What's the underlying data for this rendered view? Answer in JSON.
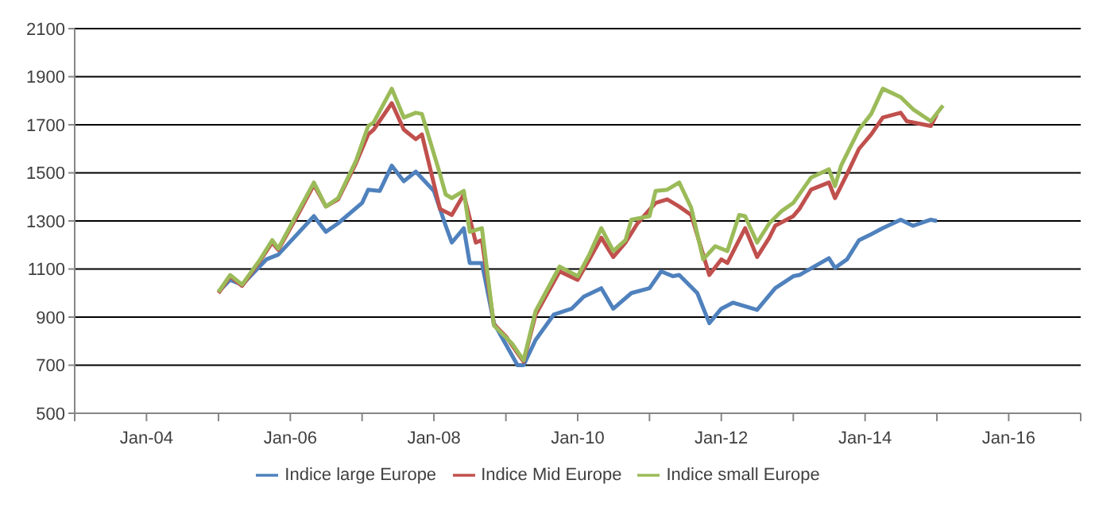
{
  "chart_data": {
    "type": "line",
    "xlim": [
      "2003-01",
      "2017-01"
    ],
    "xticks": [
      {
        "value": "2003-01",
        "label": null
      },
      {
        "value": "2004-01",
        "label": "Jan-04"
      },
      {
        "value": "2005-01",
        "label": null
      },
      {
        "value": "2006-01",
        "label": "Jan-06"
      },
      {
        "value": "2007-01",
        "label": null
      },
      {
        "value": "2008-01",
        "label": "Jan-08"
      },
      {
        "value": "2009-01",
        "label": null
      },
      {
        "value": "2010-01",
        "label": "Jan-10"
      },
      {
        "value": "2011-01",
        "label": null
      },
      {
        "value": "2012-01",
        "label": "Jan-12"
      },
      {
        "value": "2013-01",
        "label": null
      },
      {
        "value": "2014-01",
        "label": "Jan-14"
      },
      {
        "value": "2015-01",
        "label": null
      },
      {
        "value": "2016-01",
        "label": "Jan-16"
      },
      {
        "value": "2017-01",
        "label": null
      }
    ],
    "ylim": [
      500,
      2100
    ],
    "yticks": [
      500,
      700,
      900,
      1100,
      1300,
      1500,
      1700,
      1900,
      2100
    ],
    "grid": "y",
    "legend": "bottom",
    "marker": "none",
    "line_style": "solid",
    "series": [
      {
        "name": "Indice large Europe",
        "color": "#4f81bd",
        "x": [
          "2005-01",
          "2005-03",
          "2005-05",
          "2005-09",
          "2005-11",
          "2006-05",
          "2006-07",
          "2006-09",
          "2007-01",
          "2007-02",
          "2007-04",
          "2007-06",
          "2007-08",
          "2007-10",
          "2008-01",
          "2008-03",
          "2008-04",
          "2008-06",
          "2008-07",
          "2008-09",
          "2008-11",
          "2009-03",
          "2009-04",
          "2009-06",
          "2009-09",
          "2009-12",
          "2010-02",
          "2010-05",
          "2010-07",
          "2010-10",
          "2011-01",
          "2011-03",
          "2011-05",
          "2011-06",
          "2011-09",
          "2011-11",
          "2012-01",
          "2012-03",
          "2012-07",
          "2012-10",
          "2013-01",
          "2013-02",
          "2013-07",
          "2013-08",
          "2013-10",
          "2013-12",
          "2014-02",
          "2014-04",
          "2014-07",
          "2014-09",
          "2014-12",
          "2015-01"
        ],
        "values": [
          1005,
          1055,
          1035,
          1140,
          1160,
          1320,
          1255,
          1290,
          1375,
          1430,
          1425,
          1530,
          1465,
          1505,
          1425,
          1280,
          1210,
          1270,
          1125,
          1125,
          875,
          700,
          700,
          805,
          910,
          935,
          985,
          1020,
          935,
          1000,
          1020,
          1090,
          1070,
          1075,
          1000,
          875,
          935,
          960,
          930,
          1020,
          1070,
          1075,
          1145,
          1105,
          1140,
          1220,
          1245,
          1270,
          1305,
          1280,
          1305,
          1300
        ]
      },
      {
        "name": "Indice Mid Europe",
        "color": "#c0504d",
        "x": [
          "2005-01",
          "2005-03",
          "2005-05",
          "2005-08",
          "2005-10",
          "2005-11",
          "2006-02",
          "2006-05",
          "2006-07",
          "2006-09",
          "2006-12",
          "2007-02",
          "2007-03",
          "2007-06",
          "2007-08",
          "2007-10",
          "2007-11",
          "2008-02",
          "2008-04",
          "2008-06",
          "2008-08",
          "2008-09",
          "2008-11",
          "2009-01",
          "2009-03",
          "2009-04",
          "2009-06",
          "2009-10",
          "2010-01",
          "2010-03",
          "2010-05",
          "2010-07",
          "2010-09",
          "2010-11",
          "2011-02",
          "2011-04",
          "2011-06",
          "2011-08",
          "2011-11",
          "2012-01",
          "2012-02",
          "2012-05",
          "2012-07",
          "2012-09",
          "2012-10",
          "2013-01",
          "2013-02",
          "2013-04",
          "2013-07",
          "2013-08",
          "2013-10",
          "2013-12",
          "2014-02",
          "2014-04",
          "2014-07",
          "2014-08",
          "2014-12",
          "2015-01"
        ],
        "values": [
          1000,
          1070,
          1030,
          1135,
          1210,
          1180,
          1315,
          1450,
          1360,
          1390,
          1540,
          1660,
          1680,
          1790,
          1680,
          1640,
          1660,
          1350,
          1325,
          1410,
          1210,
          1220,
          870,
          820,
          750,
          715,
          910,
          1090,
          1055,
          1140,
          1230,
          1150,
          1210,
          1290,
          1375,
          1390,
          1360,
          1325,
          1075,
          1140,
          1125,
          1270,
          1150,
          1230,
          1280,
          1320,
          1350,
          1430,
          1460,
          1395,
          1495,
          1600,
          1660,
          1730,
          1750,
          1715,
          1695,
          1745
        ]
      },
      {
        "name": "Indice small Europe",
        "color": "#9bbb59",
        "x": [
          "2005-01",
          "2005-03",
          "2005-05",
          "2005-08",
          "2005-10",
          "2005-11",
          "2006-02",
          "2006-05",
          "2006-07",
          "2006-09",
          "2006-12",
          "2007-02",
          "2007-03",
          "2007-06",
          "2007-08",
          "2007-10",
          "2007-11",
          "2008-02",
          "2008-03",
          "2008-04",
          "2008-06",
          "2008-07",
          "2008-09",
          "2008-11",
          "2009-02",
          "2009-04",
          "2009-06",
          "2009-10",
          "2010-01",
          "2010-03",
          "2010-05",
          "2010-07",
          "2010-09",
          "2010-10",
          "2011-01",
          "2011-02",
          "2011-04",
          "2011-06",
          "2011-08",
          "2011-10",
          "2011-12",
          "2012-02",
          "2012-04",
          "2012-05",
          "2012-07",
          "2012-09",
          "2012-11",
          "2013-01",
          "2013-04",
          "2013-07",
          "2013-08",
          "2013-09",
          "2013-12",
          "2014-02",
          "2014-04",
          "2014-07",
          "2014-09",
          "2014-12",
          "2015-02"
        ],
        "values": [
          1005,
          1075,
          1035,
          1140,
          1220,
          1185,
          1325,
          1460,
          1360,
          1395,
          1550,
          1695,
          1710,
          1850,
          1730,
          1750,
          1745,
          1495,
          1410,
          1395,
          1425,
          1255,
          1270,
          865,
          790,
          720,
          925,
          1110,
          1070,
          1160,
          1270,
          1175,
          1220,
          1305,
          1320,
          1425,
          1430,
          1460,
          1355,
          1140,
          1195,
          1175,
          1325,
          1320,
          1210,
          1290,
          1340,
          1375,
          1480,
          1515,
          1445,
          1530,
          1680,
          1745,
          1850,
          1815,
          1765,
          1715,
          1780
        ]
      }
    ]
  }
}
